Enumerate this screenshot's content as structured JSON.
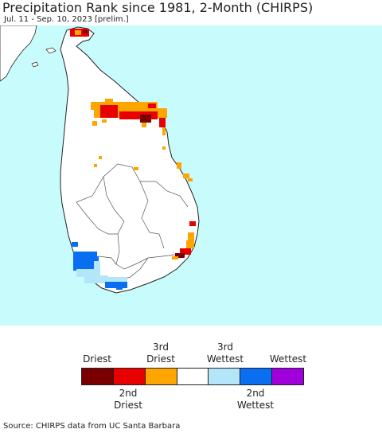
{
  "header": {
    "title": "Precipitation Rank since 1981, 2-Month (CHIRPS)",
    "subtitle": "Jul. 11 - Sep. 10, 2023 [prelim.]"
  },
  "legend": {
    "labels_top": [
      "Driest",
      "3rd\nDriest",
      "3rd\nWettest",
      "Wettest"
    ],
    "labels_bottom": [
      "2nd\nDriest",
      "2nd\nWettest"
    ],
    "colors": [
      "#7a0000",
      "#e80000",
      "#ffa500",
      "#ffffff",
      "#b4e6fa",
      "#0a6ef0",
      "#a000dc"
    ]
  },
  "colors": {
    "water": "#c8fcfc",
    "land": "#ffffff",
    "border": "#222222"
  },
  "source": "Source: CHIRPS data from UC Santa Barbara"
}
